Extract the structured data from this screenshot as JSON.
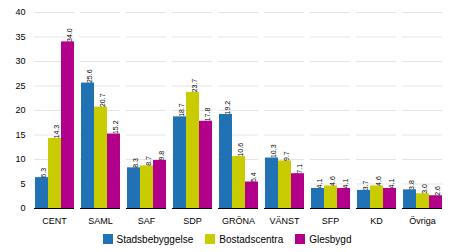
{
  "chart_data": {
    "type": "bar",
    "categories": [
      "CENT",
      "SAML",
      "SAF",
      "SDP",
      "GRÖNA",
      "VÄNST",
      "SFP",
      "KD",
      "Övriga"
    ],
    "series": [
      {
        "name": "Stadsbebyggelse",
        "color": "#2171b5",
        "values": [
          6.3,
          25.6,
          8.3,
          18.7,
          19.2,
          10.3,
          4.1,
          3.7,
          3.8
        ],
        "value_labels": [
          "6.3",
          "25.6",
          "8.3",
          "18.7",
          "19.2",
          "10.3",
          "4.1",
          "3.7",
          "3.8"
        ]
      },
      {
        "name": "Bostadscentra",
        "color": "#c8cc00",
        "values": [
          14.3,
          20.7,
          8.7,
          23.7,
          10.6,
          9.7,
          4.6,
          4.6,
          3.0
        ],
        "value_labels": [
          "14.3",
          "20.7",
          "8.7",
          "23.7",
          "10.6",
          "9.7",
          "4.6",
          "4.6",
          "3.0"
        ]
      },
      {
        "name": "Glesbygd",
        "color": "#b3008a",
        "values": [
          34.0,
          15.2,
          9.8,
          17.8,
          5.4,
          7.1,
          4.1,
          4.1,
          2.6
        ],
        "value_labels": [
          "34.0",
          "15.2",
          "9.8",
          "17.8",
          "5.4",
          "7.1",
          "4.1",
          "4.1",
          "2.6"
        ]
      }
    ],
    "ylim": [
      0,
      40
    ],
    "yticks": [
      0,
      5,
      10,
      15,
      20,
      25,
      30,
      35,
      40
    ],
    "grid": true,
    "data_labels": true,
    "legend": "bottom"
  }
}
